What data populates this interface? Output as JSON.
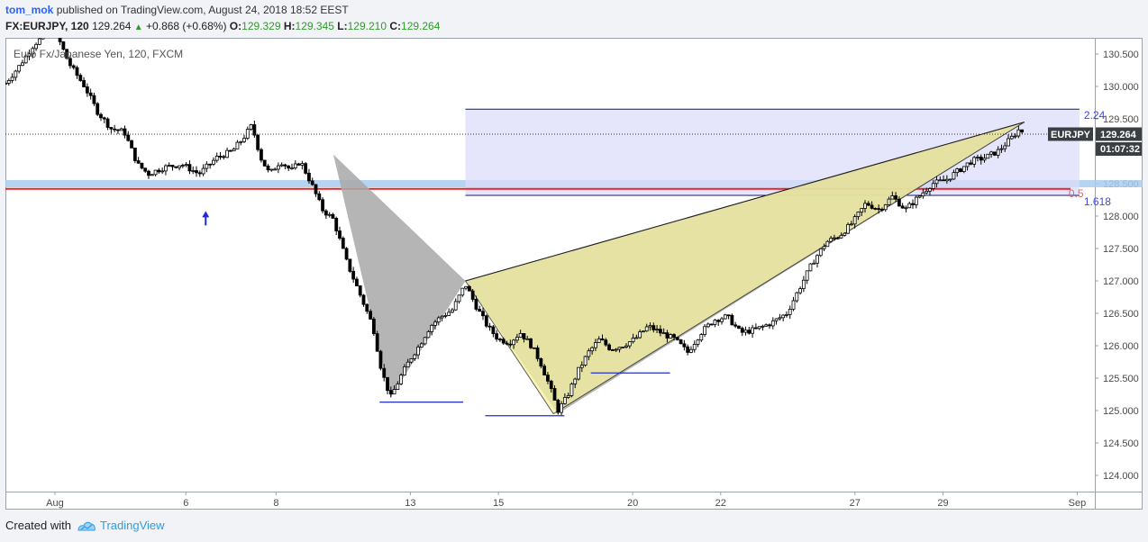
{
  "header": {
    "user": "tom_mok",
    "published_text": "published on TradingView.com, August 24, 2018 18:52 EEST",
    "symbol": "FX:EURJPY, 120",
    "last": "129.264",
    "change_arrow": "▲",
    "change": "+0.868 (+0.68%)",
    "o_label": "O:",
    "o_value": "129.329",
    "h_label": "H:",
    "h_value": "129.345",
    "l_label": "L:",
    "l_value": "129.210",
    "c_label": "C:",
    "c_value": "129.264"
  },
  "chart_title": "Euro Fx/Japanese Yen, 120, FXCM",
  "price_tag": {
    "symbol": "EURJPY",
    "price": "129.264",
    "countdown": "01:07:32"
  },
  "fib_labels": {
    "top": "2.24",
    "mid": "0.5",
    "bottom": "1.618"
  },
  "footer": {
    "created_with": "Created with",
    "brand": "TradingView"
  },
  "colors": {
    "up_candle": "#ffffff",
    "down_candle": "#000000",
    "wick": "#000000",
    "support_band": "#a9cdee",
    "red_line": "#e0262c",
    "fib_box": "#dcdcfa",
    "gray_pattern": "#a8a8a8",
    "yellow_pattern": "#f6f19d",
    "price_tag_bg": "#3a3f44",
    "fib_text": "#3b49d9"
  },
  "chart_data": {
    "type": "candlestick",
    "title": "Euro Fx/Japanese Yen, 120, FXCM",
    "yaxis": {
      "min": 123.75,
      "max": 130.75,
      "ticks": [
        "124.000",
        "124.500",
        "125.000",
        "125.500",
        "126.000",
        "126.500",
        "127.000",
        "127.500",
        "128.000",
        "128.500",
        "129.000",
        "129.500",
        "130.000",
        "130.500"
      ]
    },
    "xaxis": {
      "ticks": [
        "Aug",
        "6",
        "8",
        "13",
        "15",
        "20",
        "22",
        "27",
        "29",
        "Sep"
      ]
    },
    "close_path": [
      [
        0,
        130.05
      ],
      [
        0.6,
        130.3
      ],
      [
        1.3,
        130.65
      ],
      [
        2.2,
        130.9
      ],
      [
        2.9,
        130.35
      ],
      [
        3.6,
        130.0
      ],
      [
        4.2,
        129.6
      ],
      [
        4.8,
        129.35
      ],
      [
        5.4,
        129.3
      ],
      [
        6.0,
        128.8
      ],
      [
        6.5,
        128.65
      ],
      [
        7.2,
        128.75
      ],
      [
        8.0,
        128.8
      ],
      [
        8.8,
        128.65
      ],
      [
        9.6,
        128.9
      ],
      [
        10.3,
        129.0
      ],
      [
        10.8,
        129.2
      ],
      [
        11.2,
        129.4
      ],
      [
        11.6,
        128.9
      ],
      [
        12.0,
        128.65
      ],
      [
        12.5,
        128.85
      ],
      [
        13.0,
        128.7
      ],
      [
        13.4,
        128.85
      ],
      [
        13.9,
        128.5
      ],
      [
        14.4,
        128.1
      ],
      [
        14.9,
        127.95
      ],
      [
        15.5,
        127.3
      ],
      [
        16.1,
        126.8
      ],
      [
        16.7,
        126.3
      ],
      [
        17.1,
        125.6
      ],
      [
        17.5,
        125.2
      ],
      [
        18.0,
        125.55
      ],
      [
        18.4,
        125.8
      ],
      [
        18.8,
        126.0
      ],
      [
        19.3,
        126.3
      ],
      [
        19.8,
        126.45
      ],
      [
        20.3,
        126.55
      ],
      [
        20.9,
        126.95
      ],
      [
        21.4,
        126.6
      ],
      [
        21.9,
        126.3
      ],
      [
        22.4,
        126.1
      ],
      [
        22.9,
        126.05
      ],
      [
        23.4,
        126.2
      ],
      [
        23.9,
        126.0
      ],
      [
        24.3,
        125.75
      ],
      [
        24.7,
        125.4
      ],
      [
        25.1,
        125.0
      ],
      [
        25.5,
        125.2
      ],
      [
        26.0,
        125.6
      ],
      [
        26.5,
        125.9
      ],
      [
        27.0,
        126.1
      ],
      [
        27.5,
        125.95
      ],
      [
        28.0,
        126.0
      ],
      [
        28.6,
        126.1
      ],
      [
        29.2,
        126.3
      ],
      [
        29.8,
        126.2
      ],
      [
        30.4,
        126.1
      ],
      [
        31.0,
        125.9
      ],
      [
        31.6,
        126.2
      ],
      [
        32.2,
        126.4
      ],
      [
        32.8,
        126.45
      ],
      [
        33.4,
        126.2
      ],
      [
        34.1,
        126.25
      ],
      [
        34.8,
        126.35
      ],
      [
        35.5,
        126.5
      ],
      [
        36.1,
        126.9
      ],
      [
        36.7,
        127.3
      ],
      [
        37.3,
        127.6
      ],
      [
        37.9,
        127.7
      ],
      [
        38.5,
        127.9
      ],
      [
        39.1,
        128.2
      ],
      [
        39.7,
        128.1
      ],
      [
        40.3,
        128.3
      ],
      [
        40.9,
        128.1
      ],
      [
        41.5,
        128.3
      ],
      [
        42.1,
        128.5
      ],
      [
        42.7,
        128.55
      ],
      [
        43.3,
        128.7
      ],
      [
        43.9,
        128.85
      ],
      [
        44.5,
        128.9
      ],
      [
        45.1,
        129.0
      ],
      [
        45.7,
        129.2
      ],
      [
        46.1,
        129.35
      ],
      [
        46.3,
        129.26
      ]
    ],
    "annotations": {
      "support_band": 128.5,
      "red_line": 128.42,
      "fib_box": {
        "top": 129.65,
        "bottom": 128.32,
        "x_from": 20.9,
        "x_to": 48.8
      },
      "gray_triangle": [
        [
          14.9,
          128.95
        ],
        [
          17.5,
          125.2
        ],
        [
          20.9,
          127.0
        ]
      ],
      "gray_triangle2": [
        [
          20.9,
          127.0
        ],
        [
          25.1,
          124.95
        ],
        [
          46.3,
          129.45
        ]
      ],
      "yellow_triangle": [
        [
          20.9,
          127.0
        ],
        [
          24.9,
          124.95
        ],
        [
          46.3,
          129.45
        ]
      ],
      "low_lines": [
        {
          "price": 125.13,
          "x_from": 17.0,
          "x_to": 20.8
        },
        {
          "price": 124.92,
          "x_from": 21.8,
          "x_to": 25.4
        },
        {
          "price": 125.58,
          "x_from": 26.6,
          "x_to": 30.2
        }
      ],
      "arrow_x": 9.1
    }
  }
}
